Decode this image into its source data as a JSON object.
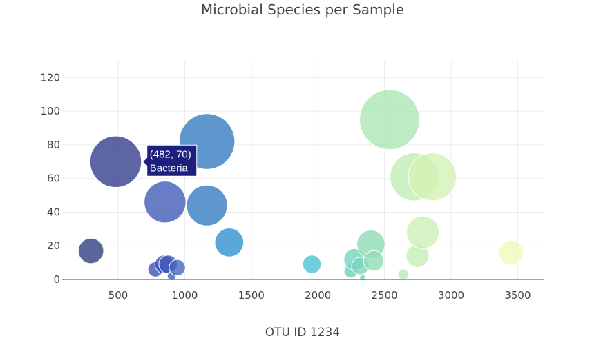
{
  "chart_data": {
    "type": "scatter",
    "title": "Microbial Species per Sample",
    "xlabel": "OTU ID 1234",
    "ylabel": "",
    "xlim": [
      80,
      3700
    ],
    "ylim": [
      0,
      130
    ],
    "x_ticks": [
      500,
      1000,
      1500,
      2000,
      2500,
      3000,
      3500
    ],
    "y_ticks": [
      0,
      20,
      40,
      60,
      80,
      100,
      120
    ],
    "grid": true,
    "legend": "none",
    "marker_mode": "bubble",
    "colorscale": "Earth-like dark blue to pale yellow by OTU ID",
    "points": [
      {
        "x": 296,
        "y": 17,
        "size": 17,
        "color": "#2c3a7e"
      },
      {
        "x": 482,
        "y": 70,
        "size": 70,
        "color": "#2f3a8b"
      },
      {
        "x": 780,
        "y": 6,
        "size": 6,
        "color": "#3a4fb0"
      },
      {
        "x": 845,
        "y": 9,
        "size": 9,
        "color": "#3a52b3"
      },
      {
        "x": 852,
        "y": 46,
        "size": 46,
        "color": "#3f58b7"
      },
      {
        "x": 875,
        "y": 9,
        "size": 9,
        "color": "#3d57b5"
      },
      {
        "x": 902,
        "y": 2,
        "size": 2,
        "color": "#3f5cb9"
      },
      {
        "x": 944,
        "y": 7,
        "size": 7,
        "color": "#4264ba"
      },
      {
        "x": 1167,
        "y": 82,
        "size": 82,
        "color": "#3179c0"
      },
      {
        "x": 1167,
        "y": 44,
        "size": 44,
        "color": "#3179c0"
      },
      {
        "x": 1334,
        "y": 22,
        "size": 22,
        "color": "#2a90cc"
      },
      {
        "x": 1955,
        "y": 9,
        "size": 9,
        "color": "#49c0d4"
      },
      {
        "x": 2248,
        "y": 5,
        "size": 5,
        "color": "#6acfc0"
      },
      {
        "x": 2275,
        "y": 12,
        "size": 12,
        "color": "#74d2bc"
      },
      {
        "x": 2318,
        "y": 8,
        "size": 8,
        "color": "#7ad5bb"
      },
      {
        "x": 2336,
        "y": 1,
        "size": 1,
        "color": "#7ed7ba"
      },
      {
        "x": 2398,
        "y": 21,
        "size": 21,
        "color": "#8bdbb6"
      },
      {
        "x": 2419,
        "y": 11,
        "size": 11,
        "color": "#8edcb6"
      },
      {
        "x": 2538,
        "y": 95,
        "size": 95,
        "color": "#a9e5b3"
      },
      {
        "x": 2642,
        "y": 3,
        "size": 3,
        "color": "#b6e9b3"
      },
      {
        "x": 2722,
        "y": 61,
        "size": 61,
        "color": "#c0edb2"
      },
      {
        "x": 2748,
        "y": 14,
        "size": 14,
        "color": "#c4eeb2"
      },
      {
        "x": 2788,
        "y": 28,
        "size": 28,
        "color": "#c9efb3"
      },
      {
        "x": 2859,
        "y": 61,
        "size": 61,
        "color": "#d3f2b3"
      },
      {
        "x": 3450,
        "y": 16,
        "size": 16,
        "color": "#f4f8b8"
      }
    ],
    "hover": {
      "x": 482,
      "y": 70,
      "coords_label": "(482, 70)",
      "text": "Bacteria",
      "bgcolor": "#1d1f7e"
    }
  }
}
